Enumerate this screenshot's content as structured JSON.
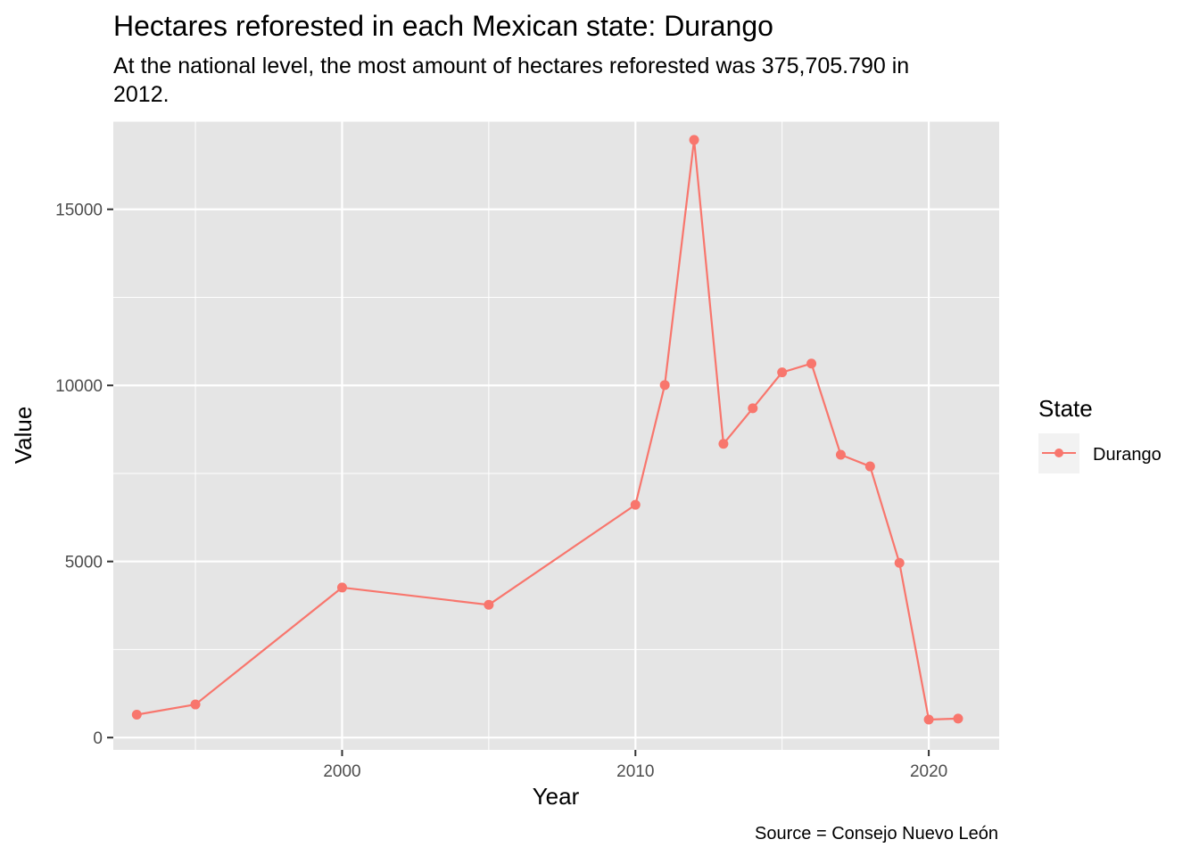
{
  "colors": {
    "panel_background": "#e5e5e5",
    "grid": "#ffffff",
    "series": "#f8766d",
    "legend_key_background": "#f2f2f2"
  },
  "chart_data": {
    "type": "line",
    "title": "Hectares reforested in each Mexican state: Durango",
    "subtitle_lines": [
      "At the national level, the most amount of hectares reforested was 375,705.790 in",
      "2012."
    ],
    "xlabel": "Year",
    "ylabel": "Value",
    "caption": "Source = Consejo Nuevo León",
    "xlim": [
      1992.2,
      2022.4
    ],
    "ylim": [
      -350,
      17500
    ],
    "x_ticks": [
      2000,
      2010,
      2020
    ],
    "x_minor_ticks": [
      1995,
      2005,
      2015
    ],
    "y_ticks": [
      0,
      5000,
      10000,
      15000
    ],
    "y_minor_ticks": [
      2500,
      7500,
      12500,
      17500
    ],
    "grid": true,
    "legend": {
      "title": "State",
      "placement": "right",
      "entries": [
        "Durango"
      ]
    },
    "series": [
      {
        "name": "Durango",
        "x": [
          1993,
          1995,
          2000,
          2005,
          2010,
          2011,
          2012,
          2013,
          2014,
          2015,
          2016,
          2017,
          2018,
          2019,
          2020,
          2021
        ],
        "y": [
          650,
          940,
          4260,
          3770,
          6610,
          10010,
          16970,
          8340,
          9350,
          10370,
          10620,
          8030,
          7700,
          4960,
          510,
          540
        ]
      }
    ]
  }
}
